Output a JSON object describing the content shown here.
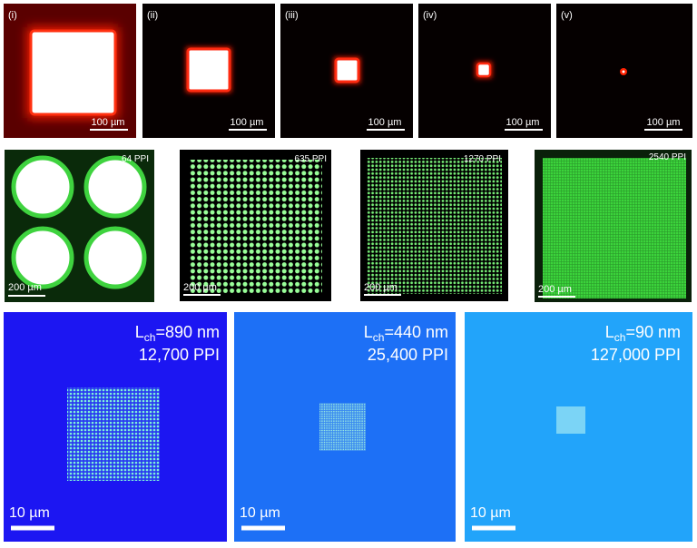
{
  "rows": [
    {
      "panels": [
        {
          "label": "(i)",
          "scale": "100 µm"
        },
        {
          "label": "(ii)",
          "scale": "100 µm"
        },
        {
          "label": "(iii)",
          "scale": "100 µm"
        },
        {
          "label": "(iv)",
          "scale": "100 µm"
        },
        {
          "label": "(v)",
          "scale": "100 µm"
        }
      ]
    },
    {
      "panels": [
        {
          "ppi": "64 PPI",
          "scale": "200 µm"
        },
        {
          "ppi": "635 PPI",
          "scale": "200 µm"
        },
        {
          "ppi": "1270 PPI",
          "scale": "200 µm"
        },
        {
          "ppi": "2540 PPI",
          "scale": "200 µm"
        }
      ]
    },
    {
      "panels": [
        {
          "length": {
            "symbol": "L",
            "subscript": "ch",
            "value": "=890 nm"
          },
          "ppi": "12,700 PPI",
          "scale": "10 µm"
        },
        {
          "length": {
            "symbol": "L",
            "subscript": "ch",
            "value": "=440 nm"
          },
          "ppi": "25,400 PPI",
          "scale": "10 µm"
        },
        {
          "length": {
            "symbol": "L",
            "subscript": "ch",
            "value": "=90 nm"
          },
          "ppi": "127,000 PPI",
          "scale": "10 µm"
        }
      ]
    }
  ]
}
